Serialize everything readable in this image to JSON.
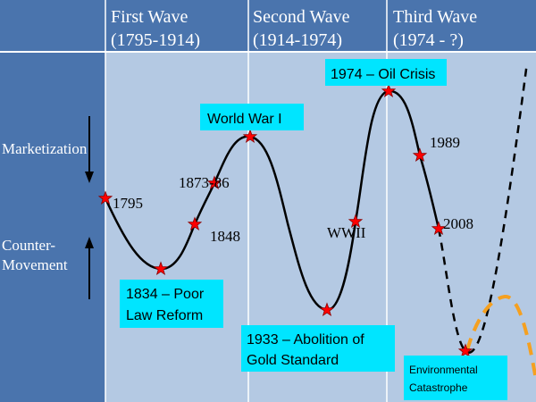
{
  "colors": {
    "background": "#ffffff",
    "header_bg": "#4a74ad",
    "left_panel_bg": "#4a74ad",
    "chart_bg": "#b4c9e3",
    "divider": "#ffffff",
    "header_text": "#ffffff",
    "curve": "#000000",
    "star_fill": "#ff0000",
    "star_stroke": "#8b0000",
    "callout_bg": "#00e5ff",
    "future_curve": "#f5a020"
  },
  "header": {
    "waves": [
      {
        "title": "First Wave",
        "period": "(1795-1914)"
      },
      {
        "title": "Second Wave",
        "period": "(1914-1974)"
      },
      {
        "title": "Third Wave",
        "period": "(1974 - ?)"
      }
    ]
  },
  "left_panel": {
    "marketization": "Marketization",
    "counter_movement_line1": "Counter-",
    "counter_movement_line2": "Movement"
  },
  "events": {
    "y1795": "1795",
    "y1848": "1848",
    "y1873_86": "1873-86",
    "wwii": "WWII",
    "y1989": "1989",
    "y2008": "2008"
  },
  "callouts": {
    "ww1": "World War I",
    "oil_crisis": "1974 – Oil Crisis",
    "poor_law_line1": "1834 – Poor",
    "poor_law_line2": "Law Reform",
    "gold_line1": "1933 – Abolition of",
    "gold_line2": "Gold Standard",
    "env_line1": "Environmental",
    "env_line2": "Catastrophe"
  }
}
